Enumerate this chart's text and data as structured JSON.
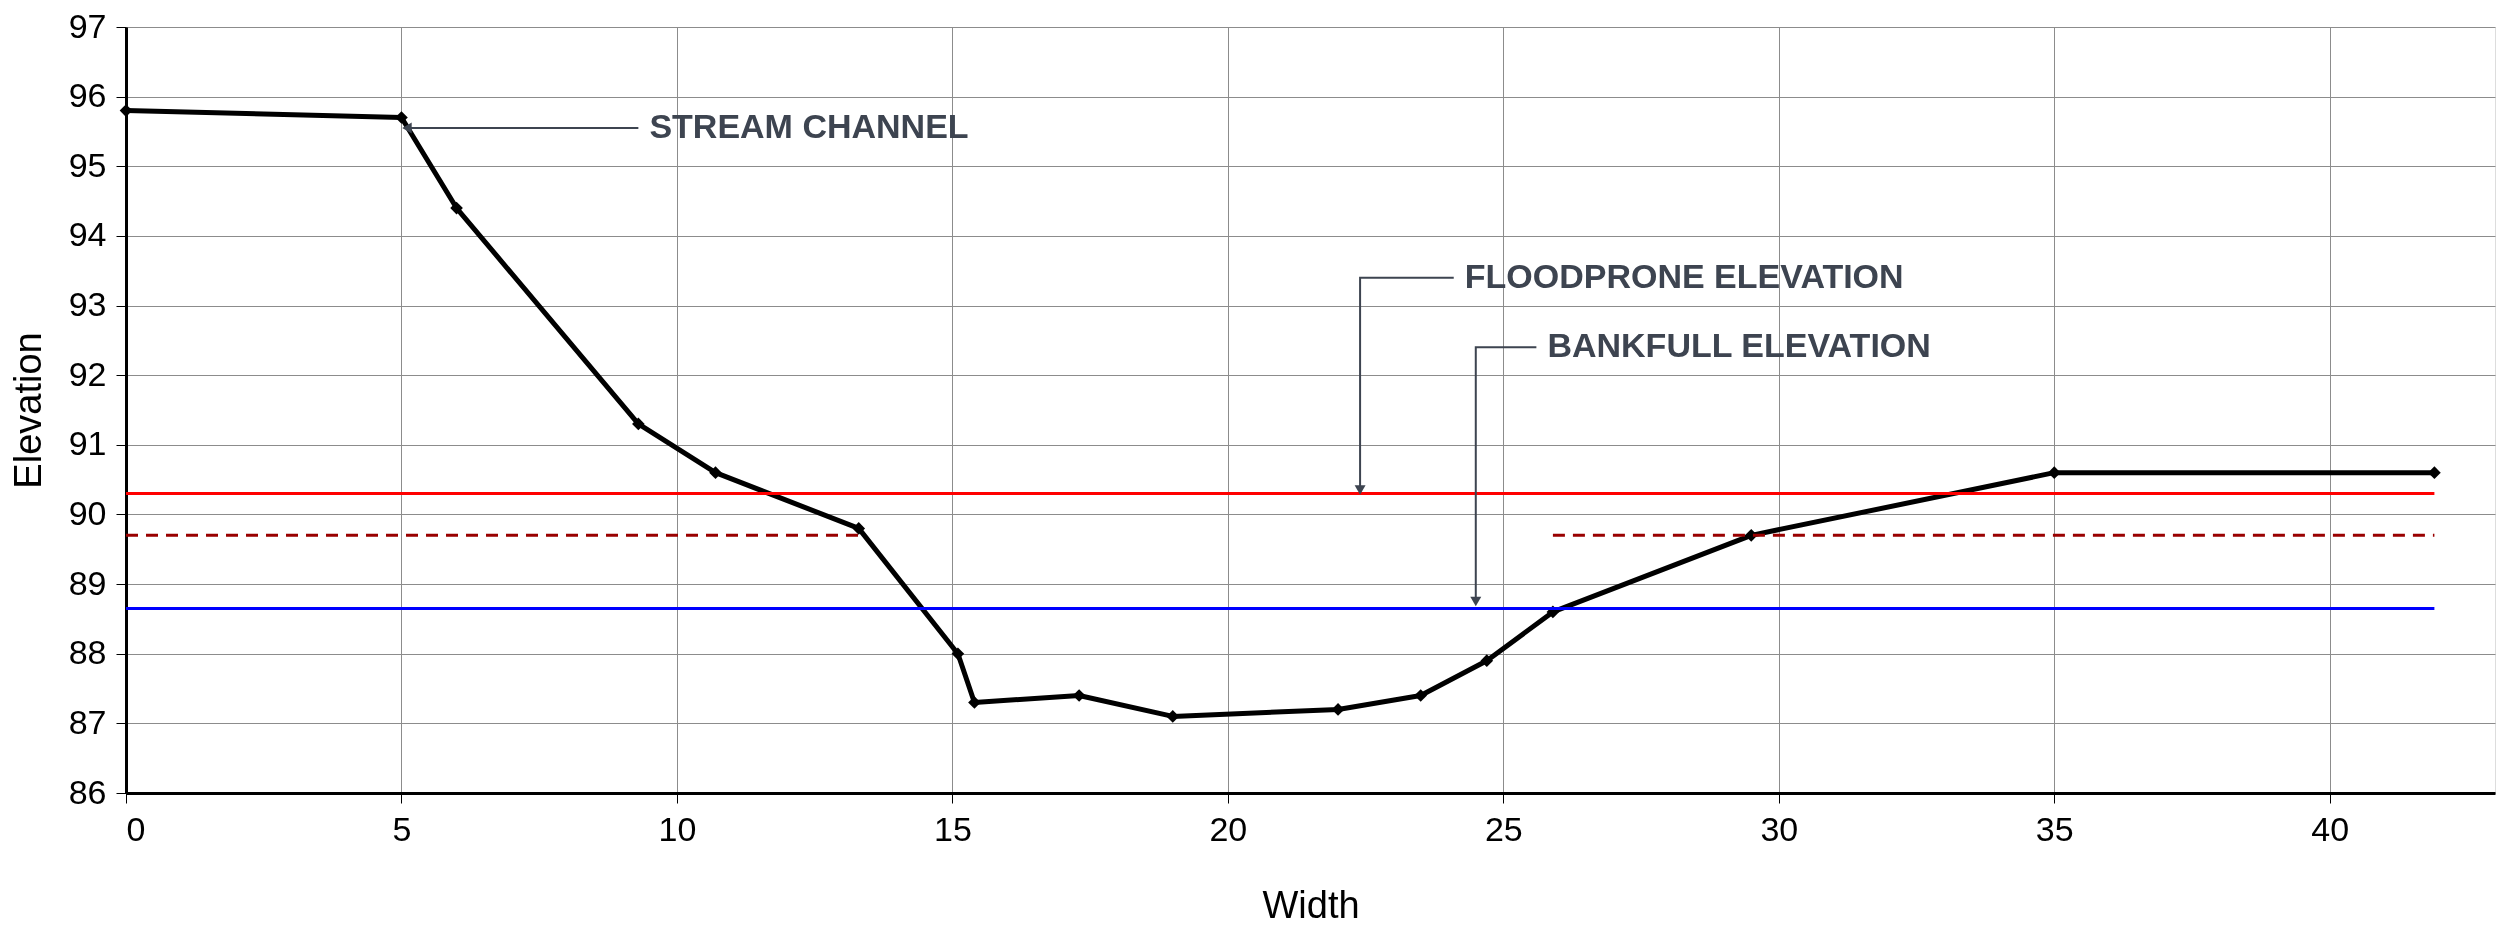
{
  "chart_data": {
    "type": "line",
    "xlabel": "Width",
    "ylabel": "Elevation",
    "x": [
      0,
      5,
      6,
      9.3,
      10.7,
      13.3,
      15.1,
      15.4,
      17.3,
      19.0,
      22.0,
      23.5,
      24.7,
      25.9,
      29.5,
      35.0,
      41.9
    ],
    "series": [
      {
        "color": "#000000",
        "marker": "diamond",
        "line_style": "solid",
        "values": [
          95.8,
          95.7,
          94.4,
          91.3,
          90.6,
          89.8,
          88.0,
          87.3,
          87.4,
          87.1,
          87.2,
          87.4,
          87.9,
          88.6,
          89.7,
          90.6,
          90.6
        ]
      },
      {
        "color": "#ff0000",
        "marker": "none",
        "line_style": "solid",
        "x": [
          0,
          41.9
        ],
        "values": [
          90.3,
          90.3
        ]
      },
      {
        "color": "#0000ff",
        "marker": "none",
        "line_style": "solid",
        "x": [
          0,
          41.9
        ],
        "values": [
          88.65,
          88.65
        ]
      },
      {
        "color": "#990000",
        "marker": "none",
        "line_style": "dashed",
        "x": [
          0,
          13.3,
          19.6,
          25.9,
          41.9
        ],
        "values": [
          89.7,
          89.7,
          null,
          89.7,
          89.7
        ]
      }
    ],
    "annotations": [
      {
        "text": "STREAM CHANNEL",
        "x": 5.1,
        "y": 95.55
      },
      {
        "text": "FLOODPRONE ELEVATION",
        "x": 22.4,
        "y": 90.35
      },
      {
        "text": "BANKFULL ELEVATION",
        "x": 24.5,
        "y": 88.75
      }
    ],
    "xlim": [
      0,
      43
    ],
    "xticks": [
      0,
      5,
      10,
      15,
      20,
      25,
      30,
      35,
      40
    ],
    "ylim": [
      86,
      97
    ],
    "yticks": [
      86,
      87,
      88,
      89,
      90,
      91,
      92,
      93,
      94,
      95,
      96,
      97
    ],
    "grid": true
  }
}
